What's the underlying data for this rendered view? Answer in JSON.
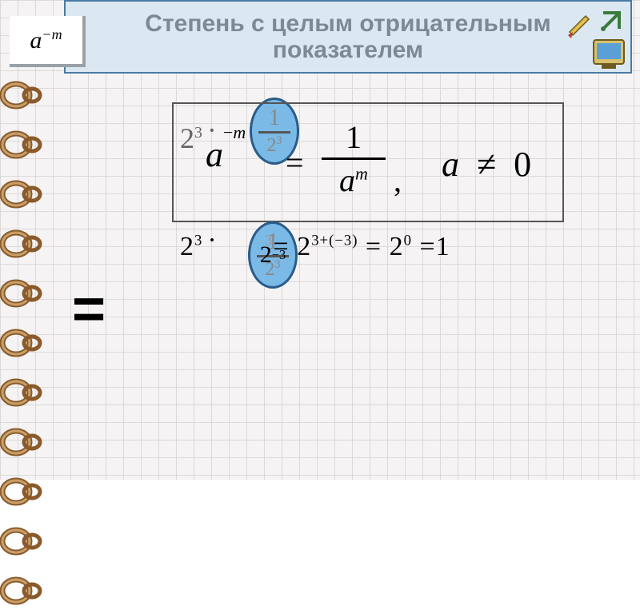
{
  "title": "Степень  с  целым отрицательным  показателем",
  "corner_formula": {
    "base": "a",
    "exp": "−m"
  },
  "rule": {
    "lhs_base": "a",
    "lhs_exp_neg": "−",
    "lhs_exp_var": "m",
    "eq": "=",
    "frac_num": "1",
    "frac_den_base": "a",
    "frac_den_exp": "m",
    "comma": ",",
    "cond_base": "a",
    "cond_neq": "≠",
    "cond_zero": "0"
  },
  "overlay_frac": {
    "left_base": "2",
    "left_exp": "3",
    "dot": "·",
    "right_num": "1",
    "right_den_base": "2",
    "right_den_exp": "3"
  },
  "badge_top": {
    "bg_num": "1",
    "bg_den_base": "2",
    "bg_den_exp": "3",
    "over": ""
  },
  "badge_bot": {
    "bg_num": "1",
    "bg_den_base": "2",
    "bg_den_exp": "3",
    "over_base": "2",
    "over_exp": "−3"
  },
  "line2": {
    "a_base": "2",
    "a_exp": "3",
    "dot": "·",
    "b_base": "2",
    "b_exp": "−3",
    "faded_exp": "3",
    "eq1": "=",
    "c_base": "2",
    "c_exp": "3+(−3)",
    "eq2": "=",
    "d_base": "2",
    "d_exp": "0",
    "eq3": "=",
    "result": "1"
  },
  "big_eq": "=",
  "colors": {
    "grid_bg": "#f5f3f3",
    "grid_line": "#dcdad8",
    "title_bg": "#dbe8f2",
    "title_border": "#4a7aa5",
    "title_text": "#7b8a95",
    "badge_fill": "#7bb9e6",
    "badge_border": "#2a5c89",
    "ring_outer": "#8a5a2b",
    "ring_inner": "#caa06a"
  },
  "fonts": {
    "title_family": "Arial",
    "title_size_pt": 22,
    "math_family": "Times New Roman",
    "rule_size_pt": 32,
    "line2_size_pt": 26,
    "big_eq_size_pt": 54
  },
  "ring_count": 11
}
